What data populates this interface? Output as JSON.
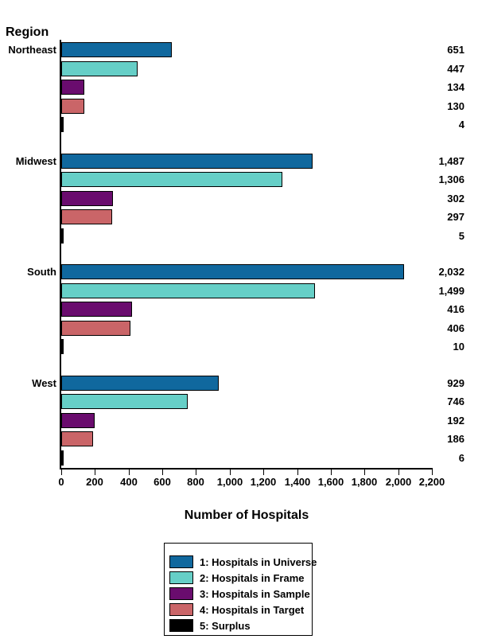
{
  "chart_data": {
    "type": "bar",
    "orientation": "horizontal",
    "y_axis_title": "Region",
    "x_axis_title": "Number of Hospitals",
    "xlim": [
      0,
      2200
    ],
    "x_tick_interval": 200,
    "x_tick_labels": [
      "0",
      "200",
      "400",
      "600",
      "800",
      "1,000",
      "1,200",
      "1,400",
      "1,600",
      "1,800",
      "2,000",
      "2,200"
    ],
    "categories": [
      "Northeast",
      "Midwest",
      "South",
      "West"
    ],
    "series": [
      {
        "name": "1: Hospitals in Universe",
        "color": "#10689e",
        "values": [
          651,
          1487,
          2032,
          929
        ]
      },
      {
        "name": "2: Hospitals in Frame",
        "color": "#66cfc7",
        "values": [
          447,
          1306,
          1499,
          746
        ]
      },
      {
        "name": "3: Hospitals in Sample",
        "color": "#6a0c6e",
        "values": [
          134,
          302,
          416,
          192
        ]
      },
      {
        "name": "4: Hospitals in Target",
        "color": "#ca6568",
        "values": [
          130,
          297,
          406,
          186
        ]
      },
      {
        "name": "5: Surplus",
        "color": "#000000",
        "values": [
          4,
          5,
          10,
          6
        ]
      }
    ],
    "value_labels": [
      [
        "651",
        "447",
        "134",
        "130",
        "4"
      ],
      [
        "1,487",
        "1,306",
        "302",
        "297",
        "5"
      ],
      [
        "2,032",
        "1,499",
        "416",
        "406",
        "10"
      ],
      [
        "929",
        "746",
        "192",
        "186",
        "6"
      ]
    ],
    "legend_position": "bottom",
    "grid": false
  }
}
